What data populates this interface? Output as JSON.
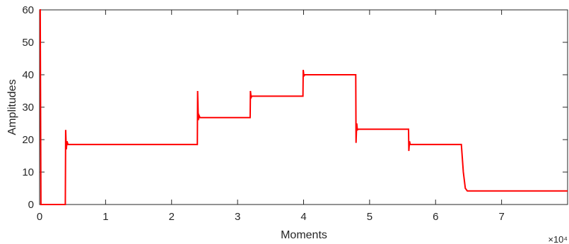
{
  "chart_data": {
    "type": "line",
    "xlabel": "Moments",
    "ylabel": "Amplitudes",
    "x_exponent_label": "×10⁴",
    "xlim": [
      0,
      80000
    ],
    "ylim": [
      0,
      60
    ],
    "x_ticks": [
      0,
      10000,
      20000,
      30000,
      40000,
      50000,
      60000,
      70000
    ],
    "x_tick_labels": [
      "0",
      "1",
      "2",
      "3",
      "4",
      "5",
      "6",
      "7"
    ],
    "y_ticks": [
      0,
      10,
      20,
      30,
      40,
      50,
      60
    ],
    "y_tick_labels": [
      "0",
      "10",
      "20",
      "30",
      "40",
      "50",
      "60"
    ],
    "grid": false,
    "line_color": "#ff0000",
    "series": [
      {
        "x": [
          0,
          100,
          200,
          3900,
          3950,
          4050,
          4150,
          4300,
          4450,
          23900,
          23950,
          24050,
          24150,
          24300,
          31900,
          31950,
          32050,
          32150,
          39900,
          39950,
          40050,
          40150,
          47900,
          47950,
          48050,
          48150,
          48300,
          55900,
          55950,
          56050,
          56150,
          63900,
          64200,
          64500,
          64800,
          80000
        ],
        "y": [
          60,
          60,
          0,
          0,
          23,
          17,
          19.5,
          18.5,
          18.5,
          18.5,
          35,
          26,
          27.5,
          26.8,
          26.8,
          35,
          33,
          33.4,
          33.4,
          41.5,
          39.5,
          40,
          40,
          19,
          25,
          23,
          23.2,
          23.2,
          16.5,
          19.5,
          18.5,
          18.5,
          10,
          5,
          4.2,
          4.2
        ]
      }
    ]
  }
}
